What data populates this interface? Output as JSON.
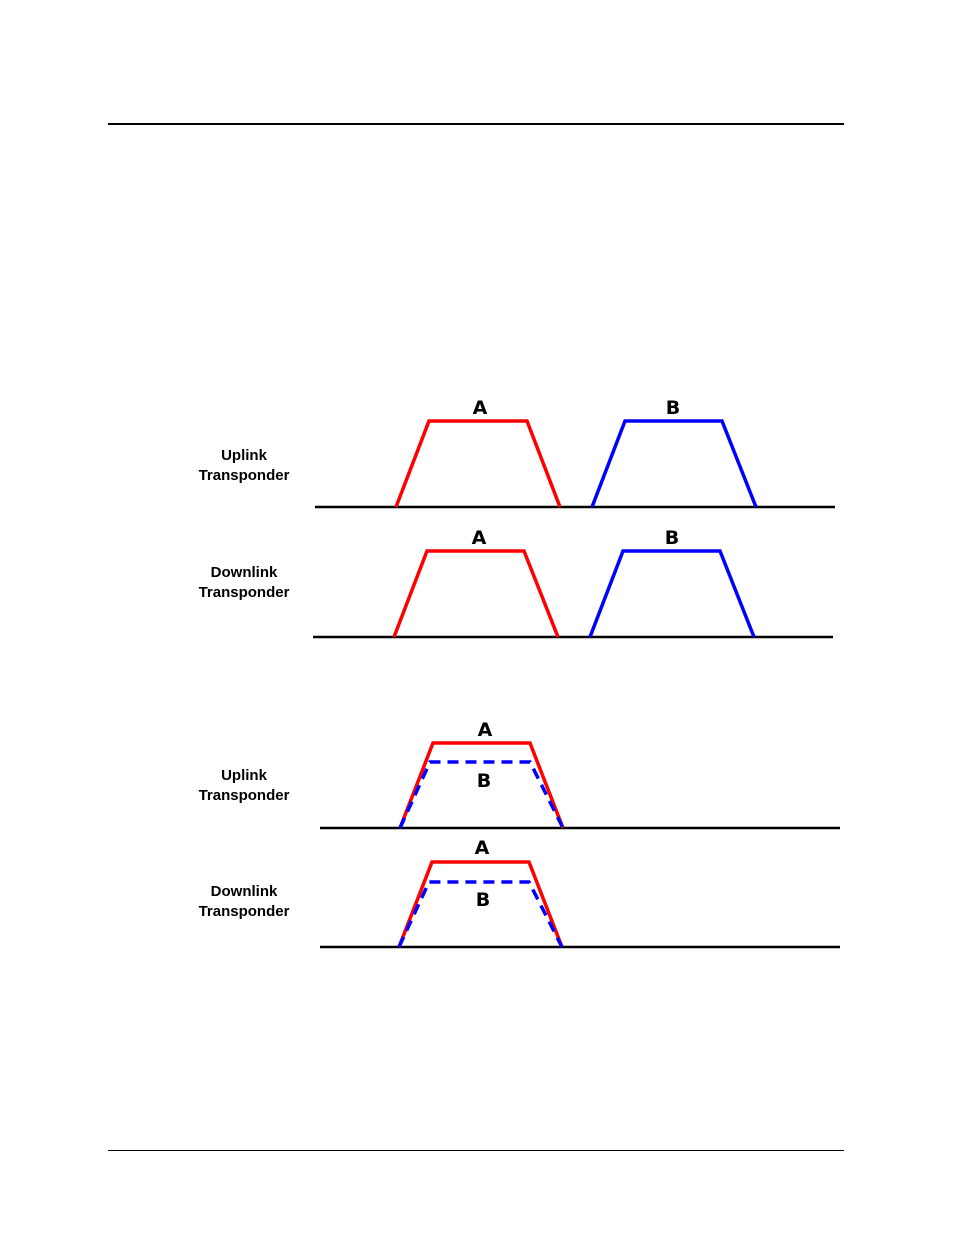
{
  "colors": {
    "carrier_a": "#ff0000",
    "carrier_b": "#0000ff",
    "baseline": "#000000"
  },
  "figure_top": {
    "uplink": {
      "label_line1": "Uplink",
      "label_line2": "Transponder",
      "carrier_a": "A",
      "carrier_b": "B"
    },
    "downlink": {
      "label_line1": "Downlink",
      "label_line2": "Transponder",
      "carrier_a": "A",
      "carrier_b": "B"
    }
  },
  "figure_bottom": {
    "uplink": {
      "label_line1": "Uplink",
      "label_line2": "Transponder",
      "carrier_a": "A",
      "carrier_b": "B"
    },
    "downlink": {
      "label_line1": "Downlink",
      "label_line2": "Transponder",
      "carrier_a": "A",
      "carrier_b": "B"
    }
  }
}
